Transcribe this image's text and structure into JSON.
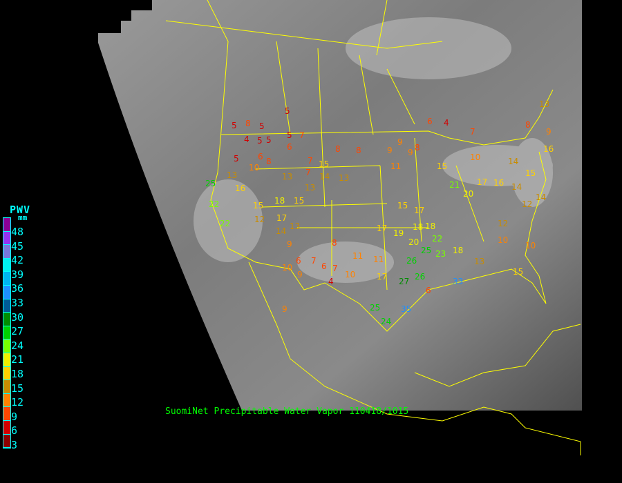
{
  "legend": {
    "title": "PWV",
    "unit": "mm",
    "labels": [
      "48",
      "45",
      "42",
      "39",
      "36",
      "33",
      "30",
      "27",
      "24",
      "21",
      "18",
      "15",
      "12",
      "9",
      "6",
      "3"
    ],
    "colors": [
      "#8c0096",
      "#9632f0",
      "#7878dc",
      "#00f0f0",
      "#00b4f0",
      "#1e90ff",
      "#005a96",
      "#008c00",
      "#00d200",
      "#78ff00",
      "#f0f000",
      "#ffd200",
      "#c88c00",
      "#ff8200",
      "#ff4600",
      "#d20000",
      "#8c0000"
    ]
  },
  "caption": "SuomiNet Precipitable Water Vapor 110418/1015",
  "stations": [
    "5",
    "5",
    "8",
    "5",
    "4",
    "5",
    "5",
    "5",
    "7",
    "6",
    "5",
    "8",
    "8",
    "7",
    "6",
    "13",
    "10",
    "8",
    "7",
    "13",
    "15",
    "13",
    "14",
    "13",
    "16",
    "15",
    "18",
    "17",
    "12",
    "14",
    "13",
    "15",
    "25",
    "22",
    "22",
    "9",
    "6",
    "7",
    "8",
    "9",
    "6",
    "7",
    "4",
    "10",
    "11",
    "10",
    "15",
    "11",
    "9",
    "9",
    "9",
    "6",
    "4",
    "8",
    "11",
    "15",
    "10",
    "17",
    "21",
    "20",
    "17",
    "18",
    "19",
    "20",
    "22",
    "23",
    "25",
    "26",
    "27",
    "26",
    "33",
    "35",
    "25",
    "24",
    "14",
    "17",
    "16",
    "12",
    "10",
    "13",
    "15",
    "15",
    "18",
    "17",
    "18",
    "10",
    "14",
    "16",
    "6",
    "9",
    "13",
    "8",
    "9",
    "7",
    "12",
    "14"
  ]
}
